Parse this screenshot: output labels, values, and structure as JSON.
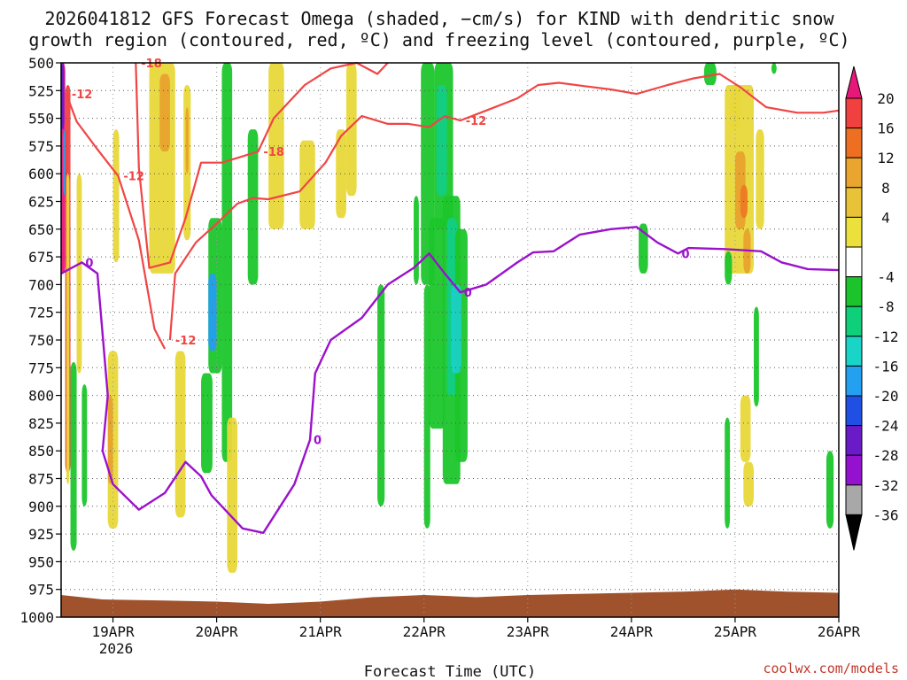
{
  "chart_data": {
    "type": "time-height cross section",
    "title_line1": "2026041812 GFS Forecast Omega (shaded, −cm/s) for KIND with dendritic snow",
    "title_line2": "growth region (contoured, red, ºC) and freezing level (contoured, purple, ºC)",
    "xlabel": "Forecast Time (UTC)",
    "credit": "coolwx.com/models",
    "x_ticks": [
      "19APR",
      "20APR",
      "21APR",
      "22APR",
      "23APR",
      "24APR",
      "25APR",
      "26APR"
    ],
    "x_tick_positions_days": [
      0.5,
      1.5,
      2.5,
      3.5,
      4.5,
      5.5,
      6.5,
      7.5
    ],
    "year_label": "2026",
    "xlim_days": [
      0,
      7.5
    ],
    "y_label_ticks": [
      "500",
      "525",
      "550",
      "575",
      "600",
      "625",
      "650",
      "675",
      "700",
      "725",
      "750",
      "775",
      "800",
      "825",
      "850",
      "875",
      "900",
      "925",
      "950",
      "975",
      "1000"
    ],
    "ylim_hpa": [
      500,
      1000
    ],
    "colorbar": {
      "labels": [
        "20",
        "16",
        "12",
        "8",
        "4",
        "-4",
        "-8",
        "-12",
        "-16",
        "-20",
        "-24",
        "-28",
        "-32",
        "-36"
      ],
      "colors": [
        "#e8177a",
        "#f04040",
        "#ee6f22",
        "#eaa52f",
        "#e9c337",
        "#ebe03c",
        "#ffffff",
        "#1ac42a",
        "#0fcf7a",
        "#18d5c8",
        "#24a0f0",
        "#1f4fe3",
        "#6a1ac7",
        "#9412cf",
        "#a8a8a8",
        "#000000"
      ]
    },
    "freezing_level": {
      "label": "0",
      "color": "#9b12cc",
      "points": [
        [
          0,
          690
        ],
        [
          0.2,
          680
        ],
        [
          0.35,
          690
        ],
        [
          0.45,
          800
        ],
        [
          0.4,
          850
        ],
        [
          0.5,
          880
        ],
        [
          0.75,
          903
        ],
        [
          1.0,
          888
        ],
        [
          1.2,
          860
        ],
        [
          1.35,
          873
        ],
        [
          1.45,
          890
        ],
        [
          1.75,
          920
        ],
        [
          1.95,
          924
        ],
        [
          2.25,
          880
        ],
        [
          2.4,
          840
        ],
        [
          2.45,
          780
        ],
        [
          2.6,
          750
        ],
        [
          2.9,
          730
        ],
        [
          3.15,
          700
        ],
        [
          3.4,
          685
        ],
        [
          3.55,
          672
        ],
        [
          3.7,
          690
        ],
        [
          3.85,
          707
        ],
        [
          4.1,
          700
        ],
        [
          4.4,
          680
        ],
        [
          4.55,
          671
        ],
        [
          4.75,
          670
        ],
        [
          5.0,
          655
        ],
        [
          5.3,
          650
        ],
        [
          5.55,
          648
        ],
        [
          5.75,
          662
        ],
        [
          5.95,
          672
        ],
        [
          6.05,
          667
        ],
        [
          6.4,
          668
        ],
        [
          6.75,
          670
        ],
        [
          6.95,
          680
        ],
        [
          7.2,
          686
        ],
        [
          7.5,
          687
        ]
      ]
    },
    "dgz_contours": [
      {
        "label": "-12",
        "color": "#f04545",
        "points": [
          [
            0.05,
            528
          ],
          [
            0.15,
            553
          ],
          [
            0.35,
            578
          ],
          [
            0.55,
            602
          ],
          [
            0.75,
            660
          ],
          [
            0.9,
            740
          ],
          [
            1.0,
            758
          ]
        ]
      },
      {
        "label": "-12",
        "color": "#f04545",
        "points": [
          [
            1.05,
            750
          ],
          [
            1.1,
            690
          ],
          [
            1.3,
            662
          ],
          [
            1.5,
            645
          ],
          [
            1.7,
            627
          ],
          [
            1.85,
            622
          ],
          [
            2.0,
            623
          ],
          [
            2.3,
            616
          ],
          [
            2.55,
            590
          ],
          [
            2.7,
            566
          ],
          [
            2.9,
            548
          ],
          [
            3.15,
            555
          ],
          [
            3.35,
            555
          ],
          [
            3.55,
            558
          ],
          [
            3.7,
            548
          ],
          [
            3.85,
            552
          ],
          [
            4.1,
            543
          ],
          [
            4.4,
            532
          ],
          [
            4.6,
            520
          ],
          [
            4.8,
            518
          ],
          [
            5.05,
            521
          ],
          [
            5.3,
            524
          ],
          [
            5.55,
            528
          ],
          [
            5.85,
            520
          ],
          [
            6.1,
            514
          ],
          [
            6.35,
            510
          ],
          [
            6.55,
            522
          ],
          [
            6.8,
            540
          ],
          [
            7.1,
            545
          ],
          [
            7.35,
            545
          ],
          [
            7.5,
            543
          ]
        ]
      },
      {
        "label": "-18",
        "color": "#f04545",
        "points": [
          [
            0.72,
            500
          ],
          [
            0.75,
            595
          ],
          [
            0.85,
            685
          ],
          [
            1.05,
            680
          ],
          [
            1.2,
            640
          ],
          [
            1.35,
            590
          ],
          [
            1.55,
            590
          ],
          [
            1.9,
            580
          ],
          [
            2.05,
            550
          ],
          [
            2.35,
            520
          ],
          [
            2.6,
            505
          ],
          [
            2.85,
            500
          ],
          [
            3.05,
            510
          ],
          [
            3.15,
            500
          ]
        ]
      }
    ]
  }
}
